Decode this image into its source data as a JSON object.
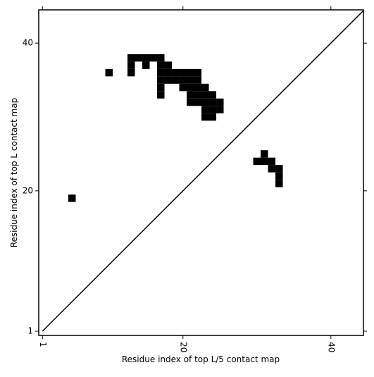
{
  "chart_data": {
    "type": "scatter",
    "marker": "square",
    "color": "#000000",
    "xlabel": "Residue index of top L/5 contact map",
    "ylabel": "Residue index of top L contact map",
    "xlim": [
      0.5,
      44.4
    ],
    "ylim": [
      0.43,
      44.5
    ],
    "xticks": [
      1,
      20,
      40
    ],
    "yticks": [
      1,
      20,
      40
    ],
    "diagonal": true,
    "x": [
      5,
      10,
      13,
      14,
      15,
      16,
      17,
      13,
      15,
      17,
      18,
      13,
      17,
      18,
      19,
      20,
      21,
      22,
      17,
      18,
      19,
      20,
      21,
      22,
      17,
      20,
      21,
      22,
      23,
      17,
      21,
      22,
      23,
      24,
      21,
      22,
      23,
      24,
      25,
      23,
      24,
      25,
      23,
      24,
      31,
      30,
      31,
      32,
      32,
      33,
      33,
      33
    ],
    "y": [
      19,
      36,
      38,
      38,
      38,
      38,
      38,
      37,
      37,
      37,
      37,
      36,
      36,
      36,
      36,
      36,
      36,
      36,
      35,
      35,
      35,
      35,
      35,
      35,
      34,
      34,
      34,
      34,
      34,
      33,
      33,
      33,
      33,
      33,
      32,
      32,
      32,
      32,
      32,
      31,
      31,
      31,
      30,
      30,
      25,
      24,
      24,
      24,
      23,
      23,
      22,
      21
    ]
  }
}
